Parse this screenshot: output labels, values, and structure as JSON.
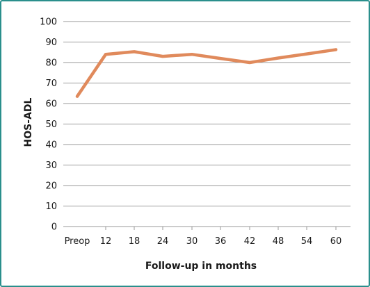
{
  "chart_data": {
    "type": "line",
    "xlabel": "Follow-up in months",
    "ylabel": "HOS-ADL",
    "categories": [
      "Preop",
      "12",
      "18",
      "24",
      "30",
      "36",
      "42",
      "48",
      "54",
      "60"
    ],
    "y_ticks": [
      "0",
      "10",
      "20",
      "30",
      "40",
      "50",
      "60",
      "70",
      "80",
      "90",
      "100"
    ],
    "ylim": [
      0,
      100
    ],
    "grid": "horizontal",
    "series": [
      {
        "x": [
          "Preop",
          "12",
          "18",
          "24",
          "30",
          "36",
          "42",
          "48",
          "54",
          "60"
        ],
        "values": [
          63.5,
          84,
          85.3,
          83,
          84,
          82,
          80,
          82.2,
          84.2,
          86.3
        ]
      }
    ],
    "line_color": "#e08a5c",
    "grid_color": "#9a9a9a"
  }
}
